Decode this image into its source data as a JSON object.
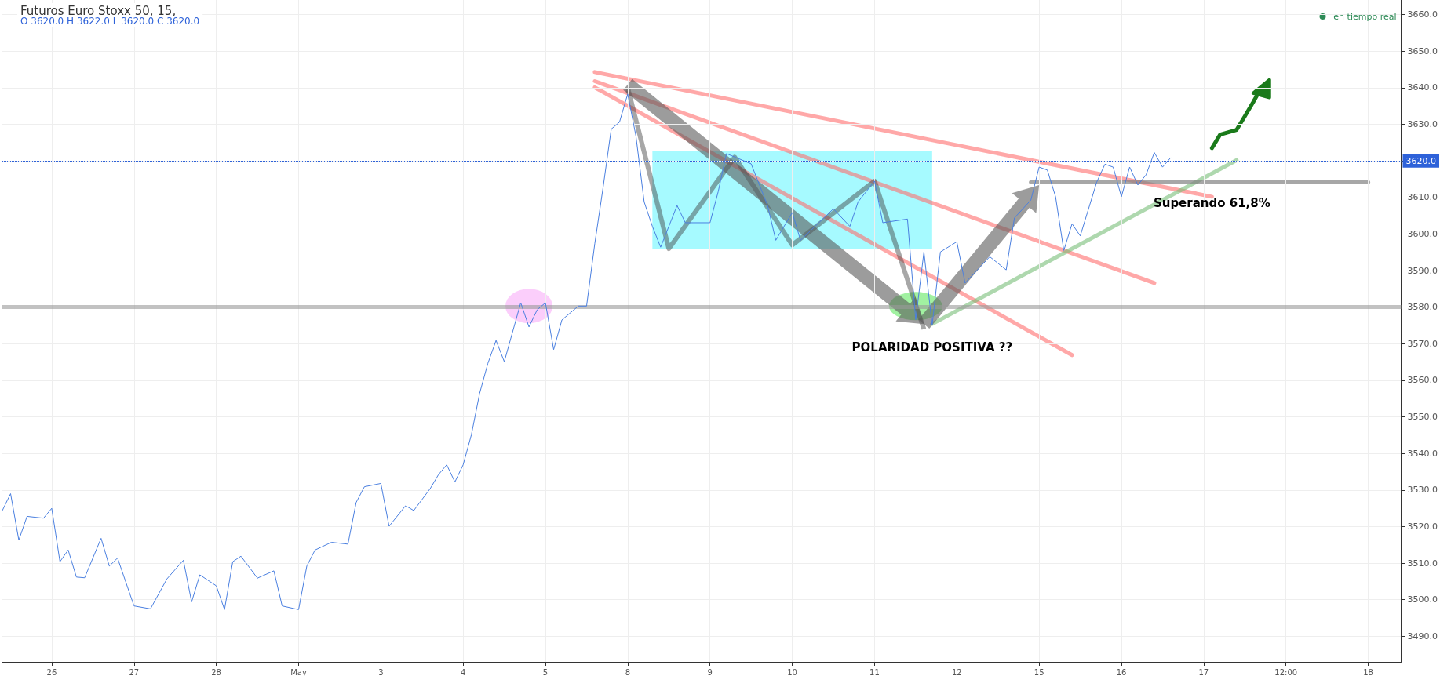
{
  "chart_data": {
    "type": "line",
    "title": "Futuros Euro Stoxx 50, 15,",
    "subtitle": "O 3620.0 H 3622.0 L 3620.0 C 3620.0",
    "categories": [
      null,
      null,
      null,
      null,
      null,
      null,
      "26",
      null,
      null,
      null,
      null,
      null,
      null,
      null,
      null,
      null,
      "27",
      null,
      null,
      null,
      null,
      null,
      null,
      null,
      null,
      null,
      "28",
      null,
      null,
      null,
      null,
      null,
      null,
      null,
      null,
      null,
      "May",
      null,
      null,
      null,
      null,
      null,
      null,
      null,
      null,
      null,
      "3",
      null,
      null,
      null,
      null,
      null,
      null,
      null,
      null,
      null,
      "4",
      null,
      null,
      null,
      null,
      null,
      null,
      null,
      null,
      null,
      "5",
      null,
      null,
      null,
      null,
      null,
      null,
      null,
      null,
      null,
      "8",
      null,
      null,
      null,
      null,
      null,
      null,
      null,
      null,
      null,
      "9",
      null,
      null,
      null,
      null,
      null,
      null,
      null,
      null,
      null,
      "10",
      null,
      null,
      null,
      null,
      null,
      null,
      null,
      null,
      null,
      "11",
      null,
      null,
      null,
      null,
      null,
      null,
      null,
      null,
      null,
      "12",
      null,
      null,
      null,
      null,
      null,
      null,
      null,
      null,
      null,
      "15",
      null,
      null,
      null,
      null,
      null,
      null,
      null,
      null,
      null,
      "16",
      null,
      null,
      null,
      null,
      null,
      null,
      null,
      null,
      null,
      "17",
      null,
      null,
      null,
      null,
      null,
      null,
      null,
      null,
      null,
      "12:00",
      null,
      null,
      null,
      null,
      null,
      null,
      null,
      null,
      null,
      "18",
      null,
      null,
      null,
      null
    ],
    "ylim": [
      3483,
      3664
    ],
    "yticks": [
      {
        "value": 3490,
        "label": "3490.0"
      },
      {
        "value": 3500,
        "label": "3500.0"
      },
      {
        "value": 3510,
        "label": "3510.0"
      },
      {
        "value": 3520,
        "label": "3520.0"
      },
      {
        "value": 3530,
        "label": "3530.0"
      },
      {
        "value": 3540,
        "label": "3540.0"
      },
      {
        "value": 3550,
        "label": "3550.0"
      },
      {
        "value": 3560,
        "label": "3560.0"
      },
      {
        "value": 3570,
        "label": "3570.0"
      },
      {
        "value": 3580,
        "label": "3580.0"
      },
      {
        "value": 3590,
        "label": "3590.0"
      },
      {
        "value": 3600,
        "label": "3600.0"
      },
      {
        "value": 3610,
        "label": "3610.0"
      },
      {
        "value": 3620,
        "label": "3620.0"
      },
      {
        "value": 3630,
        "label": "3630.0"
      },
      {
        "value": 3640,
        "label": "3640.0"
      },
      {
        "value": 3650,
        "label": "3650.0"
      },
      {
        "value": 3660,
        "label": "3660.0"
      }
    ],
    "grid": true,
    "marker": "none",
    "series": [
      {
        "color": "#4a7fe0",
        "values": [
          3524.4,
          3529,
          3516.3,
          3522.8,
          null,
          3522.3,
          3525,
          3510.4,
          3513.6,
          3506.2,
          3506,
          null,
          3516.8,
          3509.2,
          3511.4,
          null,
          3498.3,
          null,
          3497.5,
          null,
          3505.7,
          null,
          3510.8,
          3499.4,
          3506.8,
          null,
          3503.8,
          3497.3,
          3510.4,
          3511.9,
          null,
          3505.9,
          null,
          3507.9,
          3498.3,
          null,
          3497.3,
          3509.2,
          3513.6,
          null,
          3515.7,
          null,
          3515.2,
          3526.6,
          3530.9,
          null,
          3531.8,
          3520.1,
          null,
          3525.7,
          3524.4,
          null,
          3530.4,
          3534.2,
          3536.9,
          3532.2,
          3536.9,
          3545.1,
          3556.4,
          3564.6,
          3570.9,
          3565.1,
          null,
          3581.2,
          3574.6,
          3579.3,
          3581.2,
          3568.4,
          3576.5,
          null,
          3580.3,
          3580.3,
          3597.4,
          3612.6,
          3628.7,
          3630.6,
          3638.3,
          3626.8,
          3608.8,
          3602.1,
          3596.4,
          null,
          3607.8,
          3603.1,
          null,
          null,
          3603.1,
          3611.6,
          3622.0,
          null,
          null,
          3619.2,
          null,
          3607.8,
          3598.3,
          null,
          3605.9,
          3598.3,
          null,
          null,
          null,
          3606.9,
          null,
          3602.1,
          3608.8,
          null,
          3614.5,
          3603.1,
          null,
          null,
          3604.1,
          3576.6,
          3595.1,
          3575.1,
          3595.1,
          null,
          3597.9,
          3586.6,
          null,
          null,
          3593.8,
          null,
          3590.2,
          3604.4,
          null,
          3609.3,
          3618.3,
          3617.5,
          3610.2,
          3595.5,
          3602.8,
          3599.5,
          null,
          3614.2,
          3619.1,
          3618.3,
          3610.2,
          3618.3,
          3613.4,
          3616.2,
          3622.3,
          3618.3,
          3620.9,
          null,
          null,
          null,
          null,
          null,
          null,
          null,
          null,
          null,
          null,
          null,
          null,
          null,
          null,
          null,
          null,
          null,
          null,
          null,
          null,
          null,
          null,
          null,
          null,
          null,
          null,
          null,
          null
        ]
      }
    ],
    "ref_lines": [
      {
        "axis": "y",
        "value": 3620,
        "label": "3620.0",
        "color": "#2e62d9",
        "line_style": "dotted"
      },
      {
        "axis": "y",
        "value": 3580,
        "label": null,
        "color": "#999999",
        "line_style": "solid"
      }
    ],
    "annotations": [
      "en tiempo real",
      "POLARIDAD POSITIVA ??",
      "Superando 61,8%"
    ]
  }
}
